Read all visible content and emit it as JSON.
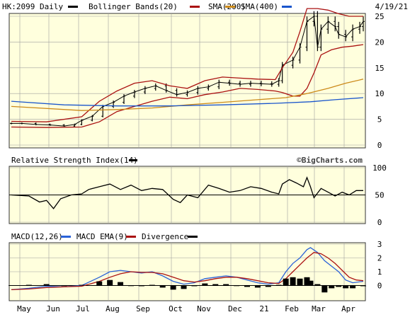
{
  "header": {
    "ticker_label": "HK:2099 Daily",
    "bollinger_label": "Bollinger Bands(20)",
    "sma200_label": "SMA(200)",
    "sma400_label": "SMA(400)",
    "date": "4/19/21"
  },
  "rsi_header": {
    "label": "Relative Strength Index(14)",
    "watermark": "©BigCharts.com"
  },
  "macd_header": {
    "macd_label": "MACD(12,26)",
    "ema_label": "MACD EMA(9)",
    "div_label": "Divergence"
  },
  "colors": {
    "price": "#000000",
    "bollinger": "#aa1111",
    "sma200": "#cc8a1a",
    "sma400": "#1a55cc",
    "macd": "#2a62d8",
    "macd_ema": "#aa1111",
    "divergence": "#000000",
    "panel_bg": "#ffffdd",
    "grid": "#a0a0a0"
  },
  "chart_data": [
    {
      "type": "line",
      "name": "price",
      "ylim": [
        0,
        25
      ],
      "yticks": [
        0,
        5,
        10,
        15,
        20,
        25
      ],
      "series": [
        {
          "name": "HK:2099 Daily",
          "kind": "ohlc",
          "points": [
            [
              0,
              4.2
            ],
            [
              0.03,
              4.2
            ],
            [
              0.07,
              4.0
            ],
            [
              0.11,
              3.9
            ],
            [
              0.15,
              3.7
            ],
            [
              0.18,
              4.0
            ],
            [
              0.2,
              4.8
            ],
            [
              0.23,
              5.6
            ],
            [
              0.26,
              7.5
            ],
            [
              0.29,
              8.3
            ],
            [
              0.32,
              9.5
            ],
            [
              0.35,
              10.3
            ],
            [
              0.38,
              11.0
            ],
            [
              0.41,
              11.5
            ],
            [
              0.44,
              10.6
            ],
            [
              0.47,
              9.8
            ],
            [
              0.5,
              10.2
            ],
            [
              0.53,
              11.0
            ],
            [
              0.56,
              11.3
            ],
            [
              0.59,
              12.2
            ],
            [
              0.62,
              12.0
            ],
            [
              0.65,
              11.8
            ],
            [
              0.68,
              12.0
            ],
            [
              0.71,
              11.9
            ],
            [
              0.74,
              11.8
            ],
            [
              0.76,
              12.5
            ],
            [
              0.77,
              15.5
            ],
            [
              0.8,
              16.5
            ],
            [
              0.82,
              19.0
            ],
            [
              0.84,
              24.0
            ],
            [
              0.86,
              25.0
            ],
            [
              0.87,
              19.0
            ],
            [
              0.88,
              22.5
            ],
            [
              0.9,
              24.0
            ],
            [
              0.92,
              23.0
            ],
            [
              0.93,
              21.5
            ],
            [
              0.95,
              21.0
            ],
            [
              0.97,
              22.5
            ],
            [
              0.99,
              23.0
            ],
            [
              1,
              24.0
            ]
          ]
        },
        {
          "name": "Bollinger Upper",
          "points": [
            [
              0,
              4.6
            ],
            [
              0.1,
              4.5
            ],
            [
              0.2,
              5.5
            ],
            [
              0.25,
              8.5
            ],
            [
              0.3,
              10.5
            ],
            [
              0.35,
              12.0
            ],
            [
              0.4,
              12.5
            ],
            [
              0.45,
              11.5
            ],
            [
              0.5,
              11.0
            ],
            [
              0.55,
              12.5
            ],
            [
              0.6,
              13.2
            ],
            [
              0.65,
              13.0
            ],
            [
              0.7,
              12.8
            ],
            [
              0.75,
              12.7
            ],
            [
              0.77,
              15.0
            ],
            [
              0.8,
              18.0
            ],
            [
              0.82,
              22.0
            ],
            [
              0.84,
              26.5
            ],
            [
              0.87,
              26.5
            ],
            [
              0.9,
              26.2
            ],
            [
              0.93,
              25.5
            ],
            [
              0.96,
              25.0
            ],
            [
              1,
              25.0
            ]
          ]
        },
        {
          "name": "Bollinger Lower",
          "points": [
            [
              0,
              3.5
            ],
            [
              0.1,
              3.4
            ],
            [
              0.2,
              3.5
            ],
            [
              0.25,
              4.5
            ],
            [
              0.3,
              6.5
            ],
            [
              0.35,
              7.5
            ],
            [
              0.4,
              8.5
            ],
            [
              0.45,
              9.3
            ],
            [
              0.5,
              9.0
            ],
            [
              0.55,
              9.8
            ],
            [
              0.6,
              10.3
            ],
            [
              0.65,
              11.0
            ],
            [
              0.7,
              10.8
            ],
            [
              0.75,
              10.5
            ],
            [
              0.77,
              10.2
            ],
            [
              0.8,
              9.5
            ],
            [
              0.82,
              9.5
            ],
            [
              0.84,
              11.0
            ],
            [
              0.86,
              14.0
            ],
            [
              0.88,
              17.5
            ],
            [
              0.91,
              18.5
            ],
            [
              0.94,
              19.0
            ],
            [
              0.97,
              19.2
            ],
            [
              1,
              19.5
            ]
          ]
        },
        {
          "name": "SMA(200)",
          "points": [
            [
              0,
              7.5
            ],
            [
              0.2,
              6.7
            ],
            [
              0.3,
              6.9
            ],
            [
              0.4,
              7.2
            ],
            [
              0.5,
              7.8
            ],
            [
              0.6,
              8.3
            ],
            [
              0.7,
              8.8
            ],
            [
              0.78,
              9.2
            ],
            [
              0.84,
              10.0
            ],
            [
              0.9,
              11.0
            ],
            [
              0.95,
              12.0
            ],
            [
              1,
              12.8
            ]
          ]
        },
        {
          "name": "SMA(400)",
          "points": [
            [
              0,
              8.5
            ],
            [
              0.15,
              7.8
            ],
            [
              0.3,
              7.6
            ],
            [
              0.45,
              7.6
            ],
            [
              0.6,
              7.8
            ],
            [
              0.75,
              8.1
            ],
            [
              0.85,
              8.4
            ],
            [
              0.92,
              8.8
            ],
            [
              1,
              9.2
            ]
          ]
        }
      ]
    },
    {
      "type": "line",
      "name": "rsi",
      "ylim": [
        0,
        100
      ],
      "yticks": [
        0,
        50,
        100
      ],
      "series": [
        {
          "name": "Relative Strength Index(14)",
          "points": [
            [
              0,
              50
            ],
            [
              0.05,
              48
            ],
            [
              0.08,
              37
            ],
            [
              0.1,
              40
            ],
            [
              0.12,
              25
            ],
            [
              0.14,
              43
            ],
            [
              0.17,
              50
            ],
            [
              0.2,
              52
            ],
            [
              0.22,
              60
            ],
            [
              0.25,
              65
            ],
            [
              0.28,
              70
            ],
            [
              0.31,
              60
            ],
            [
              0.34,
              68
            ],
            [
              0.37,
              58
            ],
            [
              0.4,
              62
            ],
            [
              0.43,
              60
            ],
            [
              0.46,
              42
            ],
            [
              0.48,
              36
            ],
            [
              0.5,
              50
            ],
            [
              0.53,
              45
            ],
            [
              0.56,
              68
            ],
            [
              0.59,
              62
            ],
            [
              0.62,
              55
            ],
            [
              0.65,
              58
            ],
            [
              0.68,
              65
            ],
            [
              0.71,
              62
            ],
            [
              0.74,
              55
            ],
            [
              0.76,
              52
            ],
            [
              0.77,
              70
            ],
            [
              0.79,
              78
            ],
            [
              0.81,
              72
            ],
            [
              0.83,
              65
            ],
            [
              0.84,
              82
            ],
            [
              0.85,
              65
            ],
            [
              0.86,
              45
            ],
            [
              0.88,
              62
            ],
            [
              0.9,
              55
            ],
            [
              0.92,
              48
            ],
            [
              0.94,
              55
            ],
            [
              0.96,
              50
            ],
            [
              0.98,
              58
            ],
            [
              1,
              58
            ]
          ]
        }
      ]
    },
    {
      "type": "line",
      "name": "macd",
      "ylim": [
        -1,
        3
      ],
      "yticks": [
        0,
        1,
        2,
        3
      ],
      "series": [
        {
          "name": "MACD(12,26)",
          "points": [
            [
              0,
              -0.3
            ],
            [
              0.05,
              -0.2
            ],
            [
              0.1,
              -0.05
            ],
            [
              0.15,
              -0.1
            ],
            [
              0.2,
              0.0
            ],
            [
              0.25,
              0.6
            ],
            [
              0.28,
              1.0
            ],
            [
              0.31,
              1.1
            ],
            [
              0.34,
              1.0
            ],
            [
              0.37,
              0.9
            ],
            [
              0.4,
              1.0
            ],
            [
              0.43,
              0.7
            ],
            [
              0.46,
              0.3
            ],
            [
              0.49,
              0.1
            ],
            [
              0.52,
              0.2
            ],
            [
              0.55,
              0.5
            ],
            [
              0.58,
              0.6
            ],
            [
              0.61,
              0.7
            ],
            [
              0.64,
              0.6
            ],
            [
              0.67,
              0.4
            ],
            [
              0.7,
              0.2
            ],
            [
              0.73,
              0.1
            ],
            [
              0.76,
              0.2
            ],
            [
              0.78,
              1.0
            ],
            [
              0.8,
              1.6
            ],
            [
              0.82,
              2.0
            ],
            [
              0.84,
              2.6
            ],
            [
              0.85,
              2.75
            ],
            [
              0.87,
              2.4
            ],
            [
              0.89,
              1.8
            ],
            [
              0.91,
              1.4
            ],
            [
              0.93,
              1.0
            ],
            [
              0.95,
              0.4
            ],
            [
              0.97,
              0.2
            ],
            [
              1,
              0.3
            ]
          ]
        },
        {
          "name": "MACD EMA(9)",
          "points": [
            [
              0,
              -0.3
            ],
            [
              0.05,
              -0.25
            ],
            [
              0.1,
              -0.15
            ],
            [
              0.15,
              -0.1
            ],
            [
              0.2,
              -0.05
            ],
            [
              0.25,
              0.3
            ],
            [
              0.28,
              0.6
            ],
            [
              0.31,
              0.85
            ],
            [
              0.34,
              1.0
            ],
            [
              0.37,
              0.95
            ],
            [
              0.4,
              0.95
            ],
            [
              0.43,
              0.85
            ],
            [
              0.46,
              0.6
            ],
            [
              0.49,
              0.35
            ],
            [
              0.52,
              0.25
            ],
            [
              0.55,
              0.35
            ],
            [
              0.58,
              0.5
            ],
            [
              0.61,
              0.6
            ],
            [
              0.64,
              0.6
            ],
            [
              0.67,
              0.5
            ],
            [
              0.7,
              0.35
            ],
            [
              0.73,
              0.2
            ],
            [
              0.76,
              0.15
            ],
            [
              0.78,
              0.5
            ],
            [
              0.8,
              1.0
            ],
            [
              0.82,
              1.5
            ],
            [
              0.84,
              2.0
            ],
            [
              0.86,
              2.4
            ],
            [
              0.88,
              2.3
            ],
            [
              0.9,
              2.0
            ],
            [
              0.92,
              1.6
            ],
            [
              0.94,
              1.1
            ],
            [
              0.96,
              0.6
            ],
            [
              0.98,
              0.4
            ],
            [
              1,
              0.35
            ]
          ]
        },
        {
          "name": "Divergence",
          "kind": "bar",
          "points": [
            [
              0,
              0.02
            ],
            [
              0.05,
              0.05
            ],
            [
              0.1,
              0.1
            ],
            [
              0.15,
              0.0
            ],
            [
              0.2,
              0.05
            ],
            [
              0.25,
              0.3
            ],
            [
              0.28,
              0.4
            ],
            [
              0.31,
              0.25
            ],
            [
              0.34,
              0.0
            ],
            [
              0.37,
              -0.05
            ],
            [
              0.4,
              0.05
            ],
            [
              0.43,
              -0.15
            ],
            [
              0.46,
              -0.3
            ],
            [
              0.49,
              -0.25
            ],
            [
              0.52,
              -0.05
            ],
            [
              0.55,
              0.15
            ],
            [
              0.58,
              0.1
            ],
            [
              0.61,
              0.1
            ],
            [
              0.64,
              0.0
            ],
            [
              0.67,
              -0.1
            ],
            [
              0.7,
              -0.15
            ],
            [
              0.73,
              -0.1
            ],
            [
              0.76,
              0.05
            ],
            [
              0.78,
              0.5
            ],
            [
              0.8,
              0.6
            ],
            [
              0.82,
              0.5
            ],
            [
              0.84,
              0.6
            ],
            [
              0.85,
              0.35
            ],
            [
              0.87,
              0.1
            ],
            [
              0.89,
              -0.5
            ],
            [
              0.91,
              -0.2
            ],
            [
              0.93,
              -0.1
            ],
            [
              0.95,
              -0.2
            ],
            [
              0.97,
              -0.2
            ],
            [
              1,
              -0.05
            ]
          ]
        }
      ]
    }
  ],
  "x_axis": {
    "labels": [
      "May",
      "Jun",
      "Jul",
      "Aug",
      "Sep",
      "Oct",
      "Nov",
      "Dec",
      "21",
      "Feb",
      "Mar",
      "Apr"
    ]
  }
}
